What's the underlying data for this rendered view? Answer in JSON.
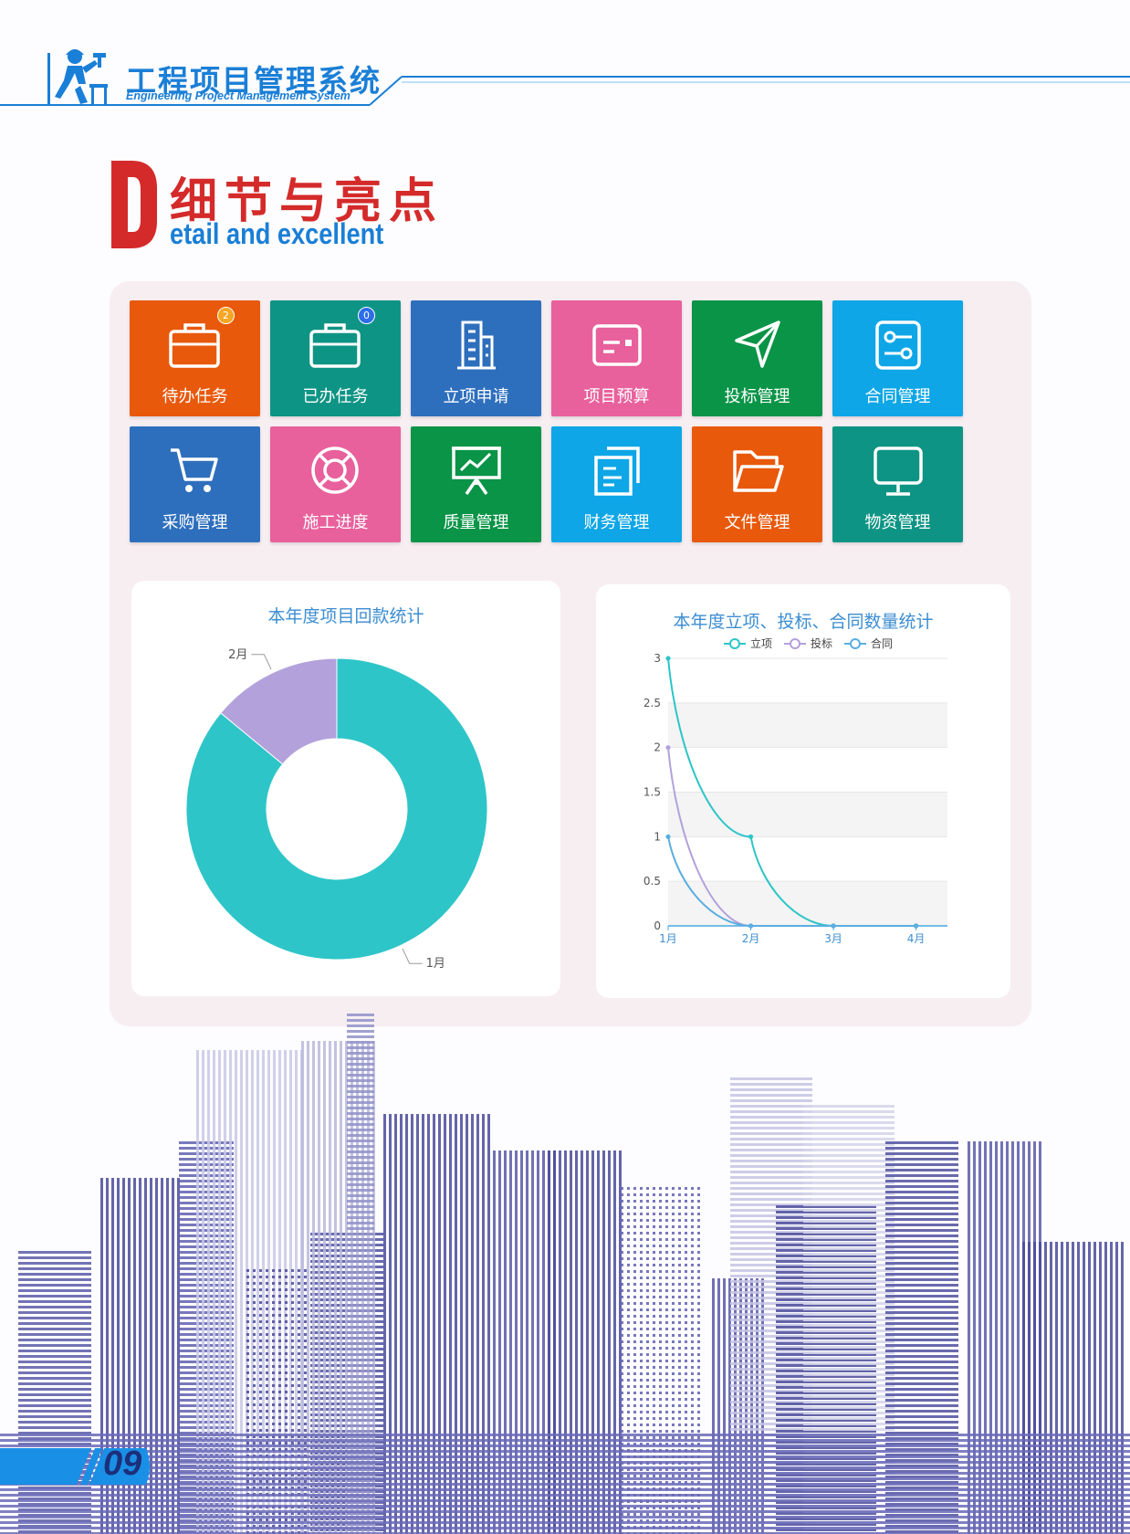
{
  "header": {
    "title": "工程项目管理系统",
    "subtitle": "Engineering Project Management System"
  },
  "section": {
    "letter": "D",
    "title": "细节与亮点",
    "subtitle": "etail and excellent"
  },
  "tiles": [
    {
      "label": "待办任务",
      "color": "#e8590c",
      "icon": "briefcase-icon",
      "badge": "2",
      "badge_color": "#f5a623"
    },
    {
      "label": "已办任务",
      "color": "#0e9484",
      "icon": "briefcase-icon",
      "badge": "0",
      "badge_color": "#2d6ee8"
    },
    {
      "label": "立项申请",
      "color": "#2e6fbd",
      "icon": "building-icon"
    },
    {
      "label": "项目预算",
      "color": "#e8609c",
      "icon": "id-card-icon"
    },
    {
      "label": "投标管理",
      "color": "#0a9447",
      "icon": "navigation-arrow-icon"
    },
    {
      "label": "合同管理",
      "color": "#0ea6e6",
      "icon": "settings-toggle-icon"
    },
    {
      "label": "采购管理",
      "color": "#2e6fbd",
      "icon": "shopping-cart-icon"
    },
    {
      "label": "施工进度",
      "color": "#e8609c",
      "icon": "lifebuoy-icon"
    },
    {
      "label": "质量管理",
      "color": "#0a9447",
      "icon": "presentation-chart-icon"
    },
    {
      "label": "财务管理",
      "color": "#0ea6e6",
      "icon": "documents-icon"
    },
    {
      "label": "文件管理",
      "color": "#e8590c",
      "icon": "folder-icon"
    },
    {
      "label": "物资管理",
      "color": "#0e9484",
      "icon": "monitor-icon"
    }
  ],
  "chart_data": [
    {
      "type": "pie",
      "title": "本年度项目回款统计",
      "labels": [
        "1月",
        "2月"
      ],
      "values": [
        86,
        14
      ],
      "colors": [
        "#2ec5c8",
        "#b3a1dc"
      ],
      "donut": true
    },
    {
      "type": "line",
      "title": "本年度立项、投标、合同数量统计",
      "x": [
        "1月",
        "2月",
        "3月",
        "4月"
      ],
      "series": [
        {
          "name": "立项",
          "values": [
            3,
            1,
            0,
            0
          ],
          "color": "#2ec5c8"
        },
        {
          "name": "投标",
          "values": [
            2,
            0,
            0,
            0
          ],
          "color": "#b3a1dc"
        },
        {
          "name": "合同",
          "values": [
            1,
            0,
            0,
            0
          ],
          "color": "#5aaee0"
        }
      ],
      "ylim": [
        0,
        3
      ],
      "yticks": [
        "0",
        "0.5",
        "1",
        "1.5",
        "2",
        "2.5",
        "3"
      ],
      "legend": "top-center",
      "grid": "striped"
    }
  ],
  "footer": {
    "page_number": "09"
  }
}
